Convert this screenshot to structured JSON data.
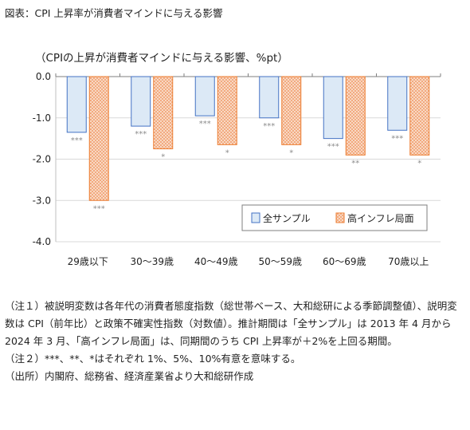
{
  "figure_title": "図表：CPI 上昇率が消費者マインドに与える影響",
  "chart_data": {
    "type": "bar",
    "title": "（CPIの上昇が消費者マインドに与える影響、%pt）",
    "categories": [
      "29歳以下",
      "30～39歳",
      "40～49歳",
      "50～59歳",
      "60～69歳",
      "70歳以上"
    ],
    "series": [
      {
        "name": "全サンプル",
        "color": "#dce9f6",
        "stroke": "#4472c4",
        "pattern": "solid",
        "values": [
          -1.35,
          -1.2,
          -0.95,
          -1.0,
          -1.5,
          -1.3
        ],
        "significance": [
          "***",
          "***",
          "***",
          "***",
          "***",
          "***"
        ]
      },
      {
        "name": "高インフレ局面",
        "color": "#fbe5d6",
        "stroke": "#ed7d31",
        "pattern": "hatched",
        "values": [
          -3.0,
          -1.75,
          -1.65,
          -1.65,
          -1.9,
          -1.9
        ],
        "significance": [
          "***",
          "*",
          "*",
          "*",
          "**",
          "*"
        ]
      }
    ],
    "ylim": [
      -4.0,
      0.0
    ],
    "yticks": [
      "0.0",
      "-1.0",
      "-2.0",
      "-3.0",
      "-4.0"
    ],
    "ytick_values": [
      0,
      -1,
      -2,
      -3,
      -4
    ],
    "grid": true,
    "legend_position": "bottom-right"
  },
  "notes": [
    "（注１）被説明変数は各年代の消費者態度指数（総世帯ベース、大和総研による季節調整値）、説明変数は CPI（前年比）と政策不確実性指数（対数値）。推計期間は「全サンプル」は 2013 年 4 月から 2024 年 3 月、「高インフレ局面」は、同期間のうち CPI 上昇率が＋2%を上回る期間。",
    "（注２）***、**、*はそれぞれ 1%、5%、10%有意を意味する。",
    "（出所）内閣府、総務省、経済産業省より大和総研作成"
  ]
}
